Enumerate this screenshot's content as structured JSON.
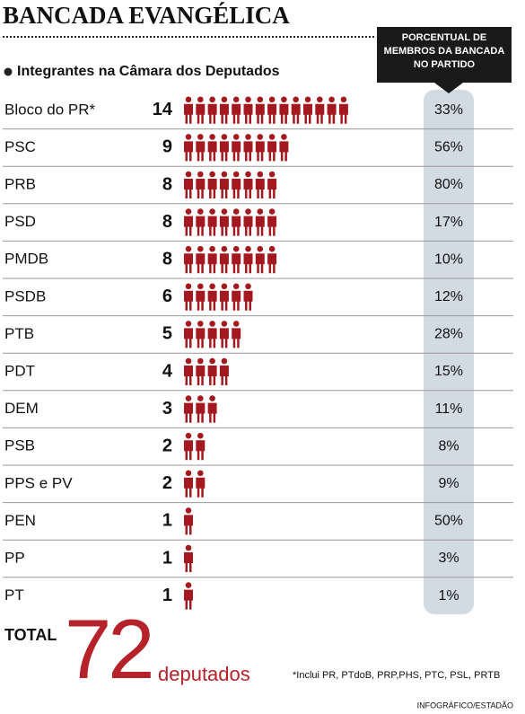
{
  "chart_data": {
    "type": "pictogram",
    "title": "BANCADA EVANGÉLICA",
    "subtitle": "Integrantes na Câmara dos Deputados",
    "column_header": [
      "PORCENTUAL DE",
      "MEMBROS DA BANCADA",
      "NO PARTIDO"
    ],
    "categories": [
      "Bloco do PR*",
      "PSC",
      "PRB",
      "PSD",
      "PMDB",
      "PSDB",
      "PTB",
      "PDT",
      "DEM",
      "PSB",
      "PPS e PV",
      "PEN",
      "PP",
      "PT"
    ],
    "values": [
      14,
      9,
      8,
      8,
      8,
      6,
      5,
      4,
      3,
      2,
      2,
      1,
      1,
      1
    ],
    "color": "#a3191f",
    "percent": {
      "values": [
        33,
        56,
        80,
        17,
        10,
        12,
        28,
        15,
        11,
        8,
        9,
        50,
        3,
        1
      ],
      "value_labels": [
        "33%",
        "56%",
        "80%",
        "17%",
        "10%",
        "12%",
        "28%",
        "15%",
        "11%",
        "8%",
        "9%",
        "50%",
        "3%",
        "1%"
      ]
    },
    "total": {
      "label": "TOTAL",
      "value": 72,
      "unit": "deputados"
    },
    "footnote": "*Inclui PR, PTdoB, PRP,PHS, PTC, PSL, PRTB",
    "credit": "INFOGRÁFICO/ESTADÃO"
  }
}
